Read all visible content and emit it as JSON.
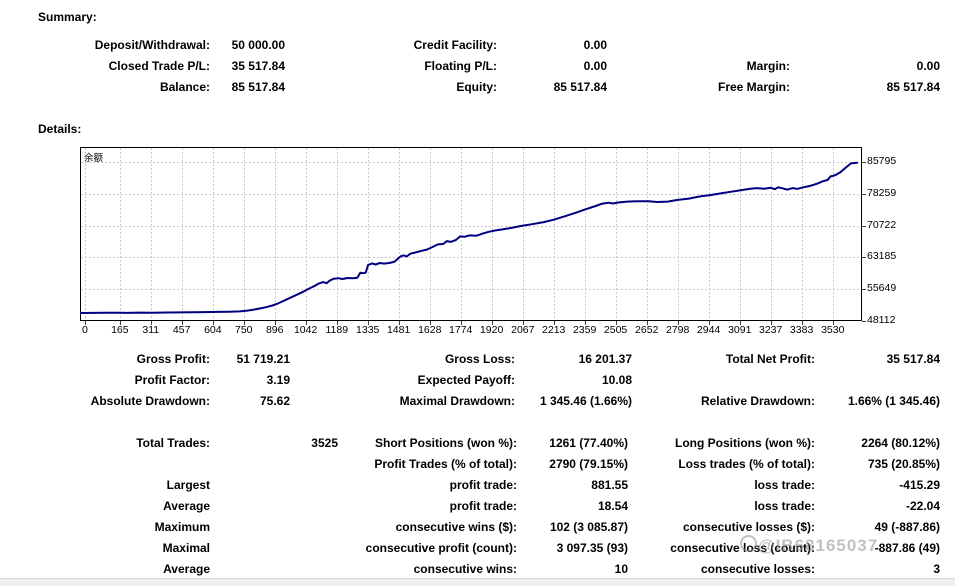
{
  "summary": {
    "title": "Summary:",
    "rows": [
      [
        "Deposit/Withdrawal:",
        "50 000.00",
        "Credit Facility:",
        "0.00",
        "",
        ""
      ],
      [
        "Closed Trade P/L:",
        "35 517.84",
        "Floating P/L:",
        "0.00",
        "Margin:",
        "0.00"
      ],
      [
        "Balance:",
        "85 517.84",
        "Equity:",
        "85 517.84",
        "Free Margin:",
        "85 517.84"
      ]
    ]
  },
  "details": {
    "title": "Details:",
    "rows_a": [
      [
        "Gross Profit:",
        "51 719.21",
        "Gross Loss:",
        "16 201.37",
        "Total Net Profit:",
        "35 517.84"
      ],
      [
        "Profit Factor:",
        "3.19",
        "Expected Payoff:",
        "10.08",
        "",
        ""
      ],
      [
        "Absolute Drawdown:",
        "75.62",
        "Maximal Drawdown:",
        "1 345.46 (1.66%)",
        "Relative Drawdown:",
        "1.66% (1 345.46)"
      ]
    ],
    "rows_b": [
      [
        "Total Trades:",
        "3525",
        "Short Positions (won %):",
        "1261 (77.40%)",
        "Long Positions (won %):",
        "2264 (80.12%)"
      ],
      [
        "",
        "",
        "Profit Trades (% of total):",
        "2790 (79.15%)",
        "Loss trades (% of total):",
        "735 (20.85%)"
      ],
      [
        "Largest",
        "",
        "profit trade:",
        "881.55",
        "loss trade:",
        "-415.29"
      ],
      [
        "Average",
        "",
        "profit trade:",
        "18.54",
        "loss trade:",
        "-22.04"
      ],
      [
        "Maximum",
        "",
        "consecutive wins ($):",
        "102 (3 085.87)",
        "consecutive losses ($):",
        "49 (-887.86)"
      ],
      [
        "Maximal",
        "",
        "consecutive profit (count):",
        "3 097.35 (93)",
        "consecutive loss (count):",
        "-887.86 (49)"
      ],
      [
        "Average",
        "",
        "consecutive wins:",
        "10",
        "consecutive losses:",
        "3"
      ]
    ]
  },
  "watermark": {
    "text": "@IB68165037"
  },
  "chart_data": {
    "type": "line",
    "title": "余额",
    "xlabel": "",
    "ylabel": "",
    "x_ticks": [
      0,
      165,
      311,
      457,
      604,
      750,
      896,
      1042,
      1189,
      1335,
      1481,
      1628,
      1774,
      1920,
      2067,
      2213,
      2359,
      2505,
      2652,
      2798,
      2944,
      3091,
      3237,
      3383,
      3530
    ],
    "y_ticks": [
      48112,
      55649,
      63185,
      70722,
      78259,
      85795
    ],
    "x_range": [
      -23,
      3668
    ],
    "y_range": [
      48112,
      89350
    ],
    "grid": "dashed",
    "grid_color": "#c8c8c8",
    "line_color": "#000080",
    "legend_position": "none",
    "series": [
      {
        "name": "余额",
        "color": "#000080",
        "points": [
          [
            -23,
            50000
          ],
          [
            40,
            50030
          ],
          [
            100,
            50060
          ],
          [
            160,
            50090
          ],
          [
            200,
            50040
          ],
          [
            255,
            50110
          ],
          [
            320,
            50070
          ],
          [
            385,
            50130
          ],
          [
            445,
            50160
          ],
          [
            505,
            50190
          ],
          [
            565,
            50220
          ],
          [
            625,
            50270
          ],
          [
            680,
            50310
          ],
          [
            730,
            50390
          ],
          [
            762,
            50520
          ],
          [
            795,
            50780
          ],
          [
            825,
            51080
          ],
          [
            855,
            51380
          ],
          [
            885,
            51780
          ],
          [
            912,
            52280
          ],
          [
            940,
            52930
          ],
          [
            970,
            53630
          ],
          [
            1000,
            54330
          ],
          [
            1030,
            55030
          ],
          [
            1060,
            55830
          ],
          [
            1085,
            56430
          ],
          [
            1105,
            57030
          ],
          [
            1125,
            57330
          ],
          [
            1141,
            57060
          ],
          [
            1157,
            57730
          ],
          [
            1175,
            58130
          ],
          [
            1196,
            58260
          ],
          [
            1216,
            58060
          ],
          [
            1240,
            58310
          ],
          [
            1264,
            58260
          ],
          [
            1286,
            58360
          ],
          [
            1300,
            59560
          ],
          [
            1312,
            59410
          ],
          [
            1326,
            59610
          ],
          [
            1337,
            61410
          ],
          [
            1356,
            61760
          ],
          [
            1372,
            61510
          ],
          [
            1392,
            61860
          ],
          [
            1412,
            61710
          ],
          [
            1436,
            61860
          ],
          [
            1460,
            62110
          ],
          [
            1478,
            62910
          ],
          [
            1491,
            63460
          ],
          [
            1506,
            63660
          ],
          [
            1519,
            63410
          ],
          [
            1536,
            64060
          ],
          [
            1562,
            64360
          ],
          [
            1590,
            64760
          ],
          [
            1616,
            65060
          ],
          [
            1641,
            65660
          ],
          [
            1666,
            66260
          ],
          [
            1691,
            66360
          ],
          [
            1709,
            67060
          ],
          [
            1726,
            66860
          ],
          [
            1751,
            67310
          ],
          [
            1771,
            68160
          ],
          [
            1792,
            68060
          ],
          [
            1816,
            68410
          ],
          [
            1846,
            68310
          ],
          [
            1876,
            68810
          ],
          [
            1906,
            69260
          ],
          [
            1936,
            69560
          ],
          [
            1971,
            69810
          ],
          [
            2011,
            70160
          ],
          [
            2061,
            70660
          ],
          [
            2111,
            71060
          ],
          [
            2166,
            71560
          ],
          [
            2213,
            72110
          ],
          [
            2261,
            72860
          ],
          [
            2311,
            73660
          ],
          [
            2361,
            74560
          ],
          [
            2411,
            75360
          ],
          [
            2441,
            75910
          ],
          [
            2471,
            76160
          ],
          [
            2492,
            75960
          ],
          [
            2521,
            76210
          ],
          [
            2561,
            76410
          ],
          [
            2611,
            76510
          ],
          [
            2661,
            76510
          ],
          [
            2701,
            76310
          ],
          [
            2751,
            76410
          ],
          [
            2798,
            76810
          ],
          [
            2851,
            77110
          ],
          [
            2901,
            77610
          ],
          [
            2951,
            77960
          ],
          [
            3001,
            78360
          ],
          [
            3051,
            78760
          ],
          [
            3096,
            79110
          ],
          [
            3136,
            79410
          ],
          [
            3171,
            79610
          ],
          [
            3206,
            79460
          ],
          [
            3237,
            79710
          ],
          [
            3256,
            79360
          ],
          [
            3273,
            79810
          ],
          [
            3293,
            79560
          ],
          [
            3316,
            79260
          ],
          [
            3341,
            79610
          ],
          [
            3363,
            79410
          ],
          [
            3383,
            79710
          ],
          [
            3421,
            80110
          ],
          [
            3456,
            80660
          ],
          [
            3486,
            81260
          ],
          [
            3506,
            81560
          ],
          [
            3519,
            82360
          ],
          [
            3541,
            82660
          ],
          [
            3566,
            83360
          ],
          [
            3591,
            84460
          ],
          [
            3616,
            85460
          ],
          [
            3645,
            85620
          ]
        ]
      }
    ]
  }
}
